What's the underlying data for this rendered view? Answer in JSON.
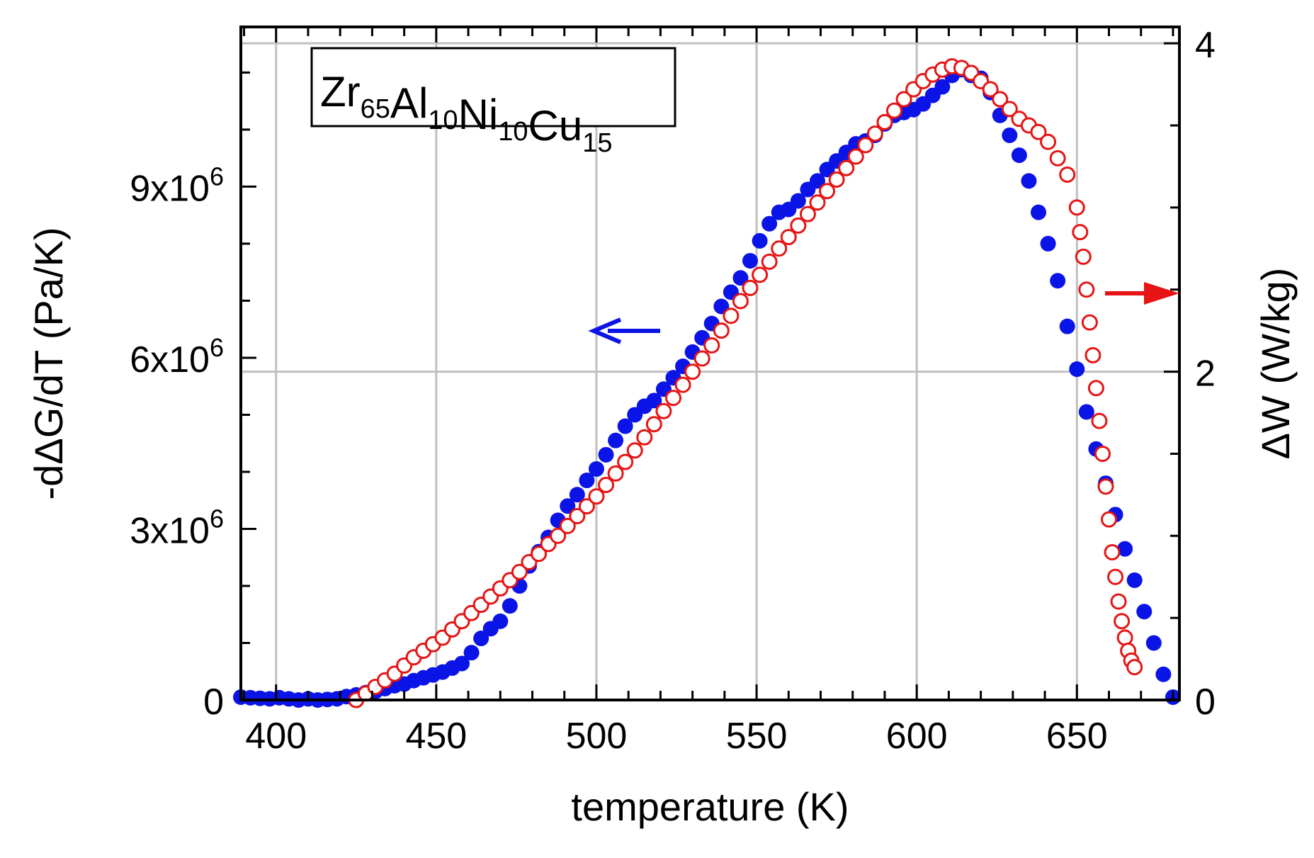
{
  "chart_data": {
    "type": "scatter",
    "title": "",
    "annotation": {
      "formula_parts": [
        {
          "text": "Zr",
          "sub": "65"
        },
        {
          "text": "Al",
          "sub": "10"
        },
        {
          "text": "Ni",
          "sub": "10"
        },
        {
          "text": "Cu",
          "sub": "15"
        }
      ]
    },
    "xlabel": "temperature (K)",
    "ylabel_left": "-dΔG/dT (Pa/K)",
    "ylabel_right": "ΔW (W/kg)",
    "xlim": [
      389,
      682
    ],
    "ylim_left": [
      0,
      11800000
    ],
    "ylim_right": [
      0,
      4.1
    ],
    "x_ticks": [
      400,
      450,
      500,
      550,
      600,
      650
    ],
    "x_tick_labels": [
      "400",
      "450",
      "500",
      "550",
      "600",
      "650"
    ],
    "y_left_ticks": [
      0,
      3000000,
      6000000,
      9000000
    ],
    "y_left_tick_labels": [
      "0",
      "3x10",
      "6x10",
      "9x10"
    ],
    "y_left_tick_exponent": "6",
    "y_right_ticks": [
      0,
      2,
      4
    ],
    "y_right_tick_labels": [
      "0",
      "2",
      "4"
    ],
    "grid": true,
    "colors": {
      "blue": "#0a14e6",
      "red": "#e61414",
      "grid": "#c0c0c0",
      "axis": "#000000"
    },
    "series": [
      {
        "name": "-dΔG/dT",
        "axis": "left",
        "marker": "filled-circle",
        "color": "#0a14e6",
        "points": [
          [
            389,
            50000
          ],
          [
            392,
            40000
          ],
          [
            395,
            30000
          ],
          [
            398,
            20000
          ],
          [
            401,
            40000
          ],
          [
            404,
            20000
          ],
          [
            407,
            0
          ],
          [
            410,
            20000
          ],
          [
            413,
            0
          ],
          [
            416,
            10000
          ],
          [
            419,
            20000
          ],
          [
            422,
            60000
          ],
          [
            425,
            90000
          ],
          [
            428,
            130000
          ],
          [
            431,
            150000
          ],
          [
            434,
            200000
          ],
          [
            437,
            250000
          ],
          [
            440,
            280000
          ],
          [
            443,
            340000
          ],
          [
            446,
            390000
          ],
          [
            449,
            440000
          ],
          [
            452,
            490000
          ],
          [
            455,
            560000
          ],
          [
            458,
            640000
          ],
          [
            461,
            830000
          ],
          [
            464,
            1080000
          ],
          [
            467,
            1250000
          ],
          [
            470,
            1380000
          ],
          [
            473,
            1650000
          ],
          [
            476,
            2000000
          ],
          [
            479,
            2350000
          ],
          [
            482,
            2600000
          ],
          [
            485,
            2850000
          ],
          [
            488,
            3150000
          ],
          [
            491,
            3400000
          ],
          [
            494,
            3600000
          ],
          [
            497,
            3850000
          ],
          [
            500,
            4050000
          ],
          [
            503,
            4300000
          ],
          [
            506,
            4550000
          ],
          [
            509,
            4800000
          ],
          [
            512,
            5000000
          ],
          [
            515,
            5150000
          ],
          [
            518,
            5250000
          ],
          [
            521,
            5450000
          ],
          [
            524,
            5650000
          ],
          [
            527,
            5850000
          ],
          [
            530,
            6100000
          ],
          [
            533,
            6350000
          ],
          [
            536,
            6600000
          ],
          [
            539,
            6900000
          ],
          [
            542,
            7150000
          ],
          [
            545,
            7400000
          ],
          [
            548,
            7700000
          ],
          [
            551,
            8050000
          ],
          [
            554,
            8350000
          ],
          [
            557,
            8550000
          ],
          [
            560,
            8600000
          ],
          [
            563,
            8750000
          ],
          [
            566,
            8950000
          ],
          [
            569,
            9100000
          ],
          [
            572,
            9300000
          ],
          [
            575,
            9450000
          ],
          [
            578,
            9600000
          ],
          [
            581,
            9750000
          ],
          [
            584,
            9800000
          ],
          [
            587,
            9900000
          ],
          [
            590,
            10100000
          ],
          [
            593,
            10250000
          ],
          [
            596,
            10300000
          ],
          [
            599,
            10350000
          ],
          [
            602,
            10450000
          ],
          [
            605,
            10600000
          ],
          [
            608,
            10750000
          ],
          [
            611,
            10950000
          ],
          [
            614,
            11050000
          ],
          [
            617,
            10950000
          ],
          [
            620,
            10900000
          ],
          [
            623,
            10650000
          ],
          [
            626,
            10250000
          ],
          [
            629,
            9900000
          ],
          [
            632,
            9550000
          ],
          [
            635,
            9100000
          ],
          [
            638,
            8550000
          ],
          [
            641,
            8000000
          ],
          [
            644,
            7350000
          ],
          [
            647,
            6550000
          ],
          [
            650,
            5800000
          ],
          [
            653,
            5050000
          ],
          [
            656,
            4400000
          ],
          [
            659,
            3800000
          ],
          [
            662,
            3250000
          ],
          [
            665,
            2650000
          ],
          [
            668,
            2100000
          ],
          [
            671,
            1550000
          ],
          [
            674,
            1000000
          ],
          [
            677,
            450000
          ],
          [
            680,
            50000
          ]
        ]
      },
      {
        "name": "ΔW",
        "axis": "right",
        "marker": "open-circle",
        "color": "#e61414",
        "points": [
          [
            425,
            0.0
          ],
          [
            428,
            0.04
          ],
          [
            431,
            0.08
          ],
          [
            434,
            0.12
          ],
          [
            437,
            0.16
          ],
          [
            440,
            0.21
          ],
          [
            443,
            0.26
          ],
          [
            446,
            0.3
          ],
          [
            449,
            0.34
          ],
          [
            452,
            0.38
          ],
          [
            455,
            0.43
          ],
          [
            458,
            0.48
          ],
          [
            461,
            0.53
          ],
          [
            464,
            0.58
          ],
          [
            467,
            0.63
          ],
          [
            470,
            0.68
          ],
          [
            473,
            0.73
          ],
          [
            476,
            0.78
          ],
          [
            479,
            0.84
          ],
          [
            482,
            0.89
          ],
          [
            485,
            0.95
          ],
          [
            488,
            1.0
          ],
          [
            491,
            1.06
          ],
          [
            494,
            1.12
          ],
          [
            497,
            1.18
          ],
          [
            500,
            1.24
          ],
          [
            503,
            1.31
          ],
          [
            506,
            1.38
          ],
          [
            509,
            1.45
          ],
          [
            512,
            1.52
          ],
          [
            515,
            1.6
          ],
          [
            518,
            1.68
          ],
          [
            521,
            1.76
          ],
          [
            524,
            1.84
          ],
          [
            527,
            1.92
          ],
          [
            530,
            2.0
          ],
          [
            533,
            2.08
          ],
          [
            536,
            2.16
          ],
          [
            539,
            2.25
          ],
          [
            542,
            2.34
          ],
          [
            545,
            2.43
          ],
          [
            548,
            2.51
          ],
          [
            551,
            2.59
          ],
          [
            554,
            2.67
          ],
          [
            557,
            2.75
          ],
          [
            560,
            2.82
          ],
          [
            563,
            2.89
          ],
          [
            566,
            2.96
          ],
          [
            569,
            3.03
          ],
          [
            572,
            3.1
          ],
          [
            575,
            3.17
          ],
          [
            578,
            3.24
          ],
          [
            581,
            3.31
          ],
          [
            584,
            3.38
          ],
          [
            587,
            3.45
          ],
          [
            590,
            3.52
          ],
          [
            593,
            3.59
          ],
          [
            596,
            3.66
          ],
          [
            599,
            3.72
          ],
          [
            602,
            3.77
          ],
          [
            605,
            3.81
          ],
          [
            608,
            3.84
          ],
          [
            611,
            3.86
          ],
          [
            614,
            3.85
          ],
          [
            617,
            3.82
          ],
          [
            620,
            3.77
          ],
          [
            623,
            3.72
          ],
          [
            626,
            3.66
          ],
          [
            629,
            3.6
          ],
          [
            632,
            3.54
          ],
          [
            635,
            3.5
          ],
          [
            638,
            3.46
          ],
          [
            641,
            3.4
          ],
          [
            644,
            3.3
          ],
          [
            647,
            3.2
          ],
          [
            650,
            3.0
          ],
          [
            651,
            2.85
          ],
          [
            652,
            2.7
          ],
          [
            653,
            2.5
          ],
          [
            654,
            2.3
          ],
          [
            655,
            2.1
          ],
          [
            656,
            1.9
          ],
          [
            657,
            1.7
          ],
          [
            658,
            1.5
          ],
          [
            659,
            1.3
          ],
          [
            660,
            1.1
          ],
          [
            661,
            0.9
          ],
          [
            662,
            0.75
          ],
          [
            663,
            0.6
          ],
          [
            664,
            0.48
          ],
          [
            665,
            0.38
          ],
          [
            666,
            0.3
          ],
          [
            667,
            0.24
          ],
          [
            668,
            0.2
          ]
        ]
      }
    ],
    "arrows": [
      {
        "target_axis": "left",
        "direction": "left",
        "color": "#0a14e6"
      },
      {
        "target_axis": "right",
        "direction": "right",
        "color": "#e61414"
      }
    ]
  }
}
